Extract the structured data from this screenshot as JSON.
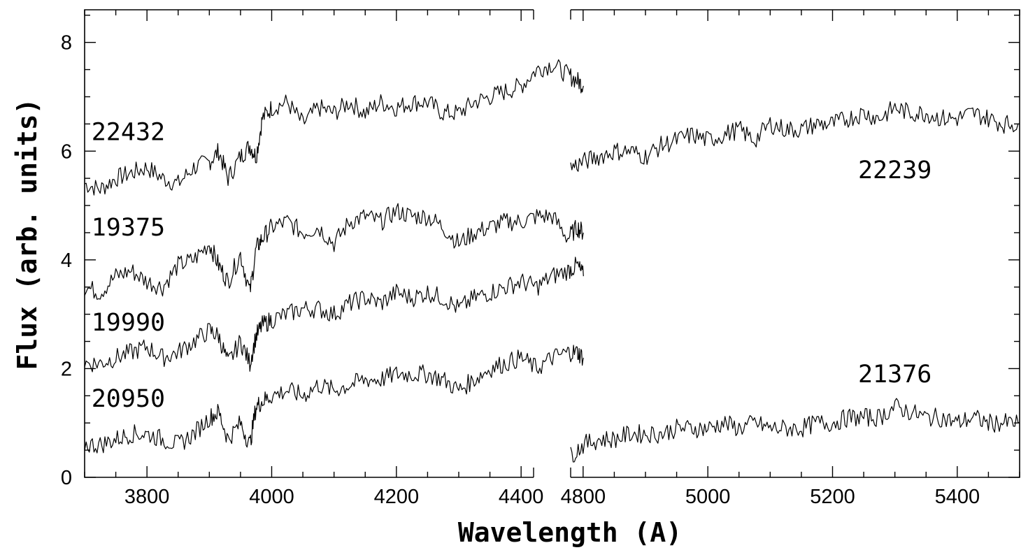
{
  "chart_data": {
    "type": "line",
    "xlabel": "Wavelength (A)",
    "ylabel": "Flux (arb. units)",
    "ylim": [
      0,
      8.6
    ],
    "y_ticks": [
      0,
      2,
      4,
      6,
      8
    ],
    "grid": false,
    "x_panels": [
      {
        "xlim": [
          3700,
          4420
        ],
        "tick_labels": [
          3800,
          4000,
          4200,
          4400
        ]
      },
      {
        "xlim": [
          4780,
          5500
        ],
        "tick_labels": [
          4800,
          5000,
          5200,
          5400
        ]
      }
    ],
    "series": [
      {
        "name": "22432",
        "panel": 0,
        "label_at": [
          3770,
          6.2
        ],
        "x": [
          3700,
          3725,
          3750,
          3775,
          3800,
          3825,
          3850,
          3875,
          3900,
          3915,
          3930,
          3950,
          3965,
          3975,
          3985,
          4000,
          4025,
          4050,
          4075,
          4100,
          4125,
          4150,
          4175,
          4200,
          4225,
          4250,
          4275,
          4300,
          4325,
          4350,
          4375,
          4400,
          4425,
          4450,
          4475,
          4490,
          4500
        ],
        "y": [
          5.4,
          5.3,
          5.5,
          5.6,
          5.7,
          5.5,
          5.4,
          5.7,
          5.8,
          6.0,
          5.5,
          5.9,
          6.1,
          5.9,
          6.6,
          6.8,
          6.9,
          6.5,
          6.8,
          6.7,
          6.9,
          6.7,
          6.9,
          6.8,
          6.9,
          6.9,
          6.7,
          6.7,
          6.9,
          7.0,
          7.1,
          7.2,
          7.5,
          7.6,
          7.4,
          7.3,
          7.2
        ]
      },
      {
        "name": "19375",
        "panel": 0,
        "label_at": [
          3770,
          4.45
        ],
        "x": [
          3700,
          3725,
          3750,
          3775,
          3800,
          3825,
          3850,
          3875,
          3900,
          3915,
          3930,
          3950,
          3965,
          3975,
          3985,
          4000,
          4025,
          4050,
          4075,
          4100,
          4125,
          4150,
          4175,
          4200,
          4225,
          4250,
          4275,
          4300,
          4325,
          4350,
          4375,
          4400,
          4425,
          4450,
          4475,
          4490,
          4500
        ],
        "y": [
          3.5,
          3.4,
          3.7,
          3.8,
          3.6,
          3.5,
          3.9,
          4.0,
          4.3,
          3.9,
          3.6,
          4.1,
          3.4,
          4.2,
          4.4,
          4.6,
          4.7,
          4.5,
          4.6,
          4.3,
          4.7,
          4.8,
          4.7,
          4.9,
          4.8,
          4.8,
          4.6,
          4.3,
          4.5,
          4.6,
          4.7,
          4.7,
          4.8,
          4.8,
          4.4,
          4.6,
          4.5
        ]
      },
      {
        "name": "19990",
        "panel": 0,
        "label_at": [
          3770,
          2.7
        ],
        "x": [
          3700,
          3725,
          3750,
          3775,
          3800,
          3825,
          3850,
          3875,
          3900,
          3915,
          3930,
          3950,
          3965,
          3975,
          3985,
          4000,
          4025,
          4050,
          4075,
          4100,
          4125,
          4150,
          4175,
          4200,
          4225,
          4250,
          4275,
          4300,
          4325,
          4350,
          4375,
          4400,
          4425,
          4450,
          4475,
          4490,
          4500
        ],
        "y": [
          2.1,
          2.1,
          2.2,
          2.3,
          2.4,
          2.2,
          2.3,
          2.5,
          2.7,
          2.6,
          2.1,
          2.5,
          2.1,
          2.6,
          2.8,
          2.9,
          3.0,
          3.1,
          3.1,
          3.0,
          3.2,
          3.3,
          3.2,
          3.4,
          3.3,
          3.4,
          3.3,
          3.1,
          3.3,
          3.4,
          3.5,
          3.6,
          3.5,
          3.7,
          3.8,
          3.9,
          3.7
        ]
      },
      {
        "name": "20950",
        "panel": 0,
        "label_at": [
          3770,
          1.3
        ],
        "x": [
          3700,
          3725,
          3750,
          3775,
          3800,
          3825,
          3850,
          3875,
          3900,
          3915,
          3930,
          3950,
          3965,
          3975,
          3985,
          4000,
          4025,
          4050,
          4075,
          4100,
          4125,
          4150,
          4175,
          4200,
          4225,
          4250,
          4275,
          4300,
          4325,
          4350,
          4375,
          4400,
          4425,
          4450,
          4475,
          4490,
          4500
        ],
        "y": [
          0.6,
          0.6,
          0.7,
          0.8,
          0.8,
          0.7,
          0.6,
          0.8,
          1.1,
          1.2,
          0.7,
          1.0,
          0.6,
          1.3,
          1.4,
          1.5,
          1.6,
          1.5,
          1.7,
          1.6,
          1.7,
          1.8,
          1.8,
          1.9,
          1.9,
          1.9,
          1.8,
          1.6,
          1.8,
          2.0,
          2.1,
          2.2,
          2.0,
          2.2,
          2.3,
          2.3,
          2.2
        ]
      },
      {
        "name": "22239",
        "panel": 1,
        "label_at": [
          5300,
          5.5
        ],
        "x": [
          4780,
          4800,
          4825,
          4850,
          4875,
          4900,
          4925,
          4950,
          4975,
          5000,
          5025,
          5050,
          5075,
          5100,
          5125,
          5150,
          5175,
          5200,
          5225,
          5250,
          5275,
          5300,
          5325,
          5350,
          5375,
          5400,
          5425,
          5450,
          5475,
          5500
        ],
        "y": [
          5.7,
          5.8,
          5.9,
          6.0,
          6.0,
          5.9,
          6.1,
          6.2,
          6.3,
          6.2,
          6.3,
          6.4,
          6.2,
          6.5,
          6.4,
          6.4,
          6.5,
          6.5,
          6.6,
          6.7,
          6.6,
          6.8,
          6.7,
          6.7,
          6.6,
          6.6,
          6.7,
          6.6,
          6.5,
          6.5
        ]
      },
      {
        "name": "21376",
        "panel": 1,
        "label_at": [
          5300,
          1.75
        ],
        "x": [
          4780,
          4800,
          4825,
          4850,
          4875,
          4900,
          4925,
          4950,
          4975,
          5000,
          5025,
          5050,
          5075,
          5100,
          5125,
          5150,
          5175,
          5200,
          5225,
          5250,
          5275,
          5300,
          5325,
          5350,
          5375,
          5400,
          5425,
          5450,
          5475,
          5500
        ],
        "y": [
          0.4,
          0.6,
          0.7,
          0.7,
          0.8,
          0.8,
          0.8,
          0.9,
          0.9,
          0.9,
          1.0,
          0.9,
          1.0,
          0.9,
          0.9,
          0.9,
          1.0,
          1.0,
          1.1,
          1.1,
          1.1,
          1.3,
          1.2,
          1.1,
          1.1,
          1.0,
          1.1,
          1.0,
          1.0,
          1.0
        ]
      }
    ]
  }
}
